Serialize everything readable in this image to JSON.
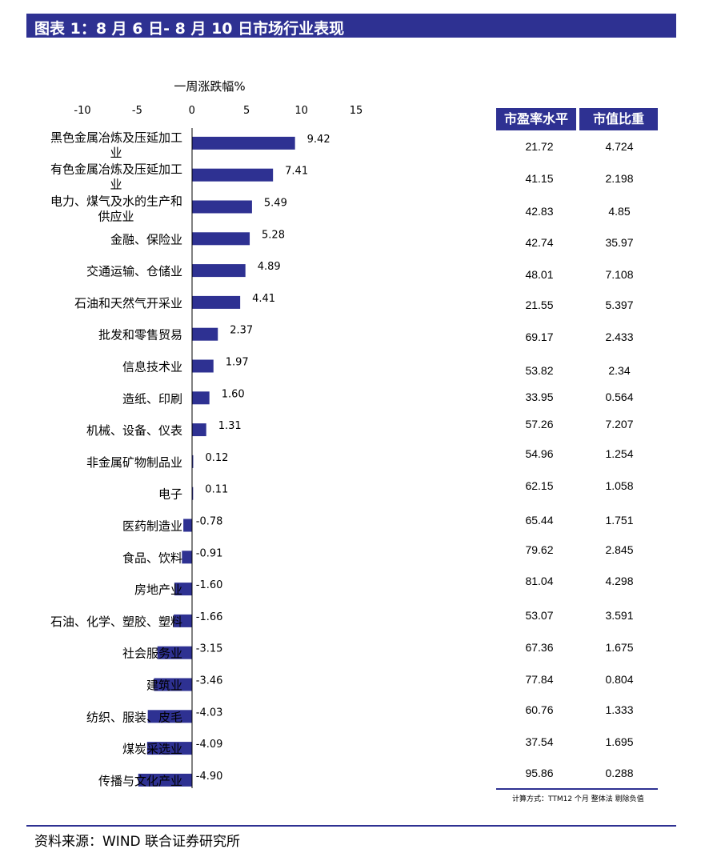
{
  "title": "图表 1：8 月 6 日- 8 月 10 日市场行业表现",
  "footer": "资料来源：WIND    联合证券研究所",
  "chart_data": {
    "type": "bar",
    "orientation": "horizontal",
    "title": "一周涨跌幅%",
    "xlim": [
      -10,
      15
    ],
    "xticks": [
      "-10",
      "-5",
      "0",
      "5",
      "10",
      "15"
    ],
    "grid": false,
    "categories": [
      "黑色金属冶炼及压延加工业",
      "有色金属冶炼及压延加工业",
      "电力、煤气及水的生产和供应业",
      "金融、保险业",
      "交通运输、仓储业",
      "石油和天然气开采业",
      "批发和零售贸易",
      "信息技术业",
      "造纸、印刷",
      "机械、设备、仪表",
      "非金属矿物制品业",
      "电子",
      "医药制造业",
      "食品、饮料",
      "房地产业",
      "石油、化学、塑胶、塑料",
      "社会服务业",
      "建筑业",
      "纺织、服装、皮毛",
      "煤炭采选业",
      "传播与文化产业"
    ],
    "category_lines": [
      [
        "黑色金属冶炼及压延加工",
        "业"
      ],
      [
        "有色金属冶炼及压延加工",
        "业"
      ],
      [
        "电力、煤气及水的生产和",
        "供应业"
      ],
      [
        "金融、保险业"
      ],
      [
        "交通运输、仓储业"
      ],
      [
        "石油和天然气开采业"
      ],
      [
        "批发和零售贸易"
      ],
      [
        "信息技术业"
      ],
      [
        "造纸、印刷"
      ],
      [
        "机械、设备、仪表"
      ],
      [
        "非金属矿物制品业"
      ],
      [
        "电子"
      ],
      [
        "医药制造业"
      ],
      [
        "食品、饮料"
      ],
      [
        "房地产业"
      ],
      [
        "石油、化学、塑胶、塑料"
      ],
      [
        "社会服务业"
      ],
      [
        "建筑业"
      ],
      [
        "纺织、服装、皮毛"
      ],
      [
        "煤炭采选业"
      ],
      [
        "传播与文化产业"
      ]
    ],
    "values": [
      9.42,
      7.41,
      5.49,
      5.28,
      4.89,
      4.41,
      2.37,
      1.97,
      1.6,
      1.31,
      0.12,
      0.11,
      -0.78,
      -0.91,
      -1.6,
      -1.66,
      -3.15,
      -3.46,
      -4.03,
      -4.09,
      -4.9
    ],
    "value_labels": [
      "9.42",
      "7.41",
      "5.49",
      "5.28",
      "4.89",
      "4.41",
      "2.37",
      "1.97",
      "1.60",
      "1.31",
      "0.12",
      "0.11",
      "-0.78",
      "-0.91",
      "-1.60",
      "-1.66",
      "-3.15",
      "-3.46",
      "-4.03",
      "-4.09",
      "-4.90"
    ],
    "bar_color": "#2e3192"
  },
  "table": {
    "headers": [
      "市盈率水平",
      "市值比重"
    ],
    "rows": [
      [
        "21.72",
        "4.724"
      ],
      [
        "41.15",
        "2.198"
      ],
      [
        "42.83",
        "4.85"
      ],
      [
        "42.74",
        "35.97"
      ],
      [
        "48.01",
        "7.108"
      ],
      [
        "21.55",
        "5.397"
      ],
      [
        "69.17",
        "2.433"
      ],
      [
        "53.82",
        "2.34"
      ],
      [
        "33.95",
        "0.564"
      ],
      [
        "57.26",
        "7.207"
      ],
      [
        "54.96",
        "1.254"
      ],
      [
        "62.15",
        "1.058"
      ],
      [
        "65.44",
        "1.751"
      ],
      [
        "79.62",
        "2.845"
      ],
      [
        "81.04",
        "4.298"
      ],
      [
        "53.07",
        "3.591"
      ],
      [
        "67.36",
        "1.675"
      ],
      [
        "77.84",
        "0.804"
      ],
      [
        "60.76",
        "1.333"
      ],
      [
        "37.54",
        "1.695"
      ],
      [
        "95.86",
        "0.288"
      ]
    ],
    "note": "计算方式：TTM12 个月 整体法 剔除负值"
  },
  "colors": {
    "accent": "#2e3192"
  }
}
